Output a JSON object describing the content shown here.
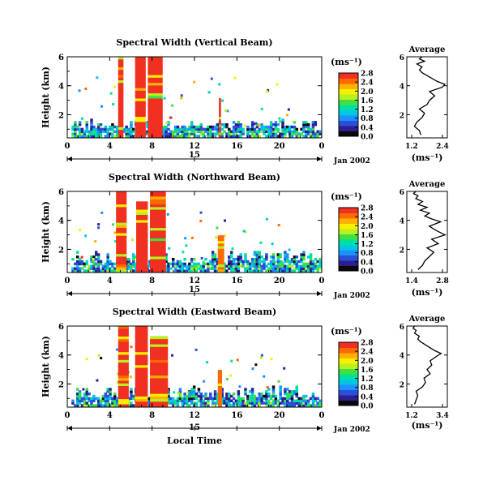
{
  "figure": {
    "x_axis_label": "Local Time",
    "date_label": "Jan 2002",
    "day_label": "15",
    "units_label": "(ms⁻¹)",
    "y_axis_label": "Height (km)",
    "average_title": "Average",
    "average_xlabel": "(ms⁻¹)"
  },
  "colors": {
    "colormap": [
      "#0a0a0a",
      "#2d1f8f",
      "#2a4fd8",
      "#1e90ff",
      "#00c8e0",
      "#00e0a0",
      "#40e040",
      "#b8f020",
      "#f8f000",
      "#ffb000",
      "#ff6a00",
      "#f03020"
    ],
    "line": "#000000",
    "background": "#ffffff"
  },
  "chart_data": [
    {
      "type": "heatmap",
      "title": "Spectral Width (Vertical Beam)",
      "x_ticks": [
        "0",
        "4",
        "8",
        "12",
        "16",
        "20",
        "0"
      ],
      "xlim": [
        0,
        24
      ],
      "y_ticks": [
        "2",
        "4",
        "6"
      ],
      "ylim": [
        0.4,
        6
      ],
      "colorbar_ticks": [
        "0.0",
        "0.4",
        "0.8",
        "1.2",
        "1.6",
        "2.0",
        "2.4",
        "2.8"
      ],
      "colorbar_range": [
        0,
        2.8
      ],
      "tall_cells": [
        {
          "start": 4.8,
          "end": 5.3,
          "top": 6.0,
          "value": 2.8
        },
        {
          "start": 6.4,
          "end": 7.4,
          "top": 6.0,
          "value": 2.8
        },
        {
          "start": 7.6,
          "end": 9.0,
          "top": 6.0,
          "value": 2.8
        },
        {
          "start": 14.3,
          "end": 14.5,
          "top": 3.0,
          "value": 2.8
        }
      ],
      "average_profile": {
        "title": "Average",
        "xlabel": "(ms⁻¹)",
        "x_ticks": [
          "1.2",
          "2.4"
        ],
        "xlim": [
          1.0,
          2.6
        ],
        "y_ticks": [
          "2",
          "4",
          "6"
        ],
        "ylim": [
          0.4,
          6
        ],
        "x": [
          1.55,
          1.5,
          1.3,
          1.4,
          1.6,
          1.7,
          1.5,
          1.8,
          1.9,
          2.1,
          1.9,
          2.4,
          2.5,
          2.2,
          2.0,
          1.8,
          1.6,
          1.5,
          1.6,
          1.4,
          1.7,
          1.5,
          1.6
        ],
        "y": [
          0.6,
          0.9,
          1.2,
          1.5,
          1.8,
          2.1,
          2.4,
          2.7,
          3.0,
          3.3,
          3.6,
          3.9,
          4.1,
          4.3,
          4.5,
          4.7,
          4.9,
          5.1,
          5.3,
          5.5,
          5.7,
          5.85,
          6.0
        ]
      }
    },
    {
      "type": "heatmap",
      "title": "Spectral Width (Northward Beam)",
      "x_ticks": [
        "0",
        "4",
        "8",
        "12",
        "16",
        "20",
        "0"
      ],
      "xlim": [
        0,
        24
      ],
      "y_ticks": [
        "2",
        "4",
        "6"
      ],
      "ylim": [
        0.4,
        6
      ],
      "colorbar_ticks": [
        "0.0",
        "0.4",
        "0.8",
        "1.2",
        "1.6",
        "2.0",
        "2.4",
        "2.8"
      ],
      "colorbar_range": [
        0,
        2.8
      ],
      "tall_cells": [
        {
          "start": 4.6,
          "end": 5.6,
          "top": 6.0,
          "value": 2.8
        },
        {
          "start": 6.5,
          "end": 7.6,
          "top": 5.2,
          "value": 2.8
        },
        {
          "start": 7.8,
          "end": 9.3,
          "top": 6.0,
          "value": 2.8
        },
        {
          "start": 14.2,
          "end": 14.8,
          "top": 2.8,
          "value": 2.5
        }
      ],
      "average_profile": {
        "title": "Average",
        "xlabel": "(ms⁻¹)",
        "x_ticks": [
          "1.4",
          "2.8"
        ],
        "xlim": [
          1.2,
          3.0
        ],
        "y_ticks": [
          "2",
          "4",
          "6"
        ],
        "ylim": [
          0.4,
          6
        ],
        "x": [
          1.7,
          1.9,
          2.0,
          2.2,
          2.4,
          2.1,
          2.6,
          2.3,
          2.9,
          2.5,
          2.2,
          2.7,
          2.3,
          2.0,
          2.2,
          1.8,
          2.1,
          1.7,
          1.9,
          1.6,
          1.7,
          1.5,
          1.6
        ],
        "y": [
          0.6,
          0.9,
          1.2,
          1.5,
          1.8,
          2.1,
          2.4,
          2.7,
          3.0,
          3.3,
          3.6,
          3.9,
          4.1,
          4.3,
          4.5,
          4.7,
          4.9,
          5.1,
          5.3,
          5.5,
          5.7,
          5.85,
          6.0
        ]
      }
    },
    {
      "type": "heatmap",
      "title": "Spectral Width (Eastward Beam)",
      "x_ticks": [
        "0",
        "4",
        "8",
        "12",
        "16",
        "20",
        "0"
      ],
      "xlim": [
        0,
        24
      ],
      "y_ticks": [
        "2",
        "4",
        "6"
      ],
      "ylim": [
        0.4,
        6
      ],
      "colorbar_ticks": [
        "0.0",
        "0.4",
        "0.8",
        "1.2",
        "1.6",
        "2.0",
        "2.4",
        "2.8"
      ],
      "colorbar_range": [
        0,
        2.8
      ],
      "tall_cells": [
        {
          "start": 4.8,
          "end": 5.8,
          "top": 6.0,
          "value": 2.8
        },
        {
          "start": 6.4,
          "end": 7.6,
          "top": 6.0,
          "value": 2.8
        },
        {
          "start": 7.8,
          "end": 9.5,
          "top": 5.3,
          "value": 2.8
        },
        {
          "start": 14.2,
          "end": 14.6,
          "top": 2.9,
          "value": 2.6
        }
      ],
      "average_profile": {
        "title": "Average",
        "xlabel": "(ms⁻¹)",
        "x_ticks": [
          "1.2",
          "3.4"
        ],
        "xlim": [
          1.0,
          3.6
        ],
        "y_ticks": [
          "2",
          "4",
          "6"
        ],
        "ylim": [
          0.4,
          6
        ],
        "x": [
          1.5,
          1.6,
          1.7,
          1.6,
          2.0,
          2.2,
          2.1,
          2.5,
          2.3,
          2.6,
          2.5,
          2.9,
          3.2,
          2.8,
          2.5,
          2.2,
          1.9,
          1.7,
          1.8,
          1.5,
          1.6,
          1.4,
          1.5
        ],
        "y": [
          0.6,
          0.9,
          1.2,
          1.5,
          1.8,
          2.1,
          2.4,
          2.7,
          3.0,
          3.3,
          3.6,
          3.9,
          4.1,
          4.3,
          4.5,
          4.7,
          4.9,
          5.1,
          5.3,
          5.5,
          5.7,
          5.85,
          6.0
        ]
      }
    }
  ]
}
